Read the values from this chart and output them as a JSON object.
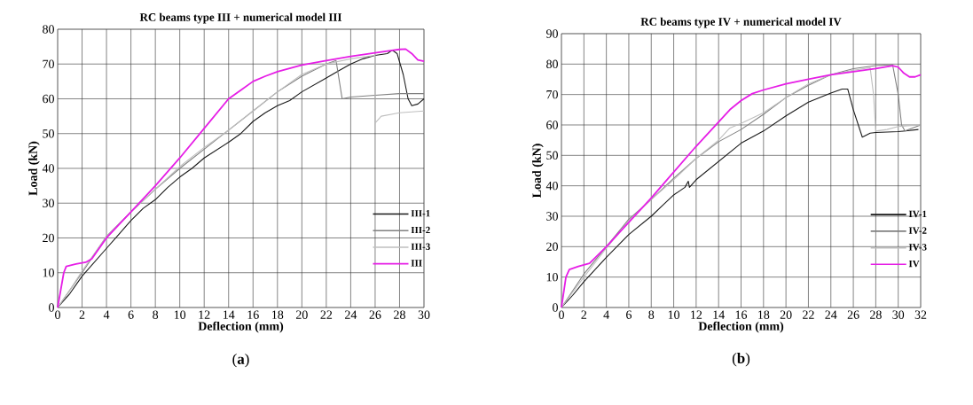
{
  "chart_data": [
    {
      "type": "line",
      "title": "RC beams type III + numerical model III",
      "xlabel": "Deflection (mm)",
      "ylabel": "Load (kN)",
      "annotations": [
        "(**a**)"
      ],
      "xlim": [
        0,
        30
      ],
      "ylim": [
        0,
        80
      ],
      "xticks": [
        0,
        2,
        4,
        6,
        8,
        10,
        12,
        14,
        16,
        18,
        20,
        22,
        24,
        26,
        28,
        30
      ],
      "yticks": [
        0,
        10,
        20,
        30,
        40,
        50,
        60,
        70,
        80
      ],
      "grid": true,
      "legend": "right",
      "series": [
        {
          "name": "III-1",
          "color": "#1a1a1a",
          "x": [
            0,
            1,
            2,
            3,
            4,
            5,
            6,
            7,
            8,
            9,
            10,
            11,
            12,
            14,
            15,
            16,
            17,
            18,
            19,
            20,
            21,
            22,
            23,
            24,
            25,
            26,
            27,
            27.4,
            27.8,
            28.3,
            28.7,
            29,
            29.5,
            30
          ],
          "values": [
            0,
            4,
            9,
            13,
            17,
            21,
            25,
            28.5,
            31,
            34.5,
            37.5,
            40,
            43,
            47.5,
            50,
            53.5,
            56,
            58,
            59.5,
            62,
            64,
            66,
            68,
            70,
            71.5,
            72.5,
            73,
            74,
            73,
            67,
            60,
            58,
            58.5,
            60
          ]
        },
        {
          "name": "III-2",
          "color": "#808080",
          "x": [
            0,
            1,
            2,
            4,
            6,
            8,
            10,
            12,
            14,
            16,
            18,
            20,
            22,
            22.8,
            23.3,
            24,
            26,
            28,
            30
          ],
          "values": [
            0,
            5,
            10,
            20.5,
            27.5,
            34,
            40,
            45.5,
            51,
            56.5,
            62,
            66.5,
            70,
            71,
            60,
            60.5,
            61,
            61.5,
            61.5
          ]
        },
        {
          "name": "III-3",
          "color": "#bfbfbf",
          "x": [
            0,
            1,
            2,
            4,
            6,
            8,
            10,
            12,
            14,
            16,
            18,
            20,
            22,
            24,
            25,
            26,
            26,
            26.5,
            28,
            30
          ],
          "values": [
            0,
            5,
            10.5,
            20.5,
            27.5,
            34,
            40.5,
            46,
            51,
            56.5,
            62,
            67,
            70,
            71.5,
            72,
            72.5,
            53,
            55,
            56,
            56.5
          ]
        },
        {
          "name": "III",
          "color": "#e61ee6",
          "x": [
            0,
            0.5,
            0.7,
            1.5,
            2.3,
            2.8,
            4,
            6,
            8,
            10,
            12,
            14,
            15,
            16,
            17,
            18,
            20,
            22,
            24,
            26,
            27.5,
            28,
            28.5,
            29,
            29.5,
            30
          ],
          "values": [
            0,
            10,
            11.8,
            12.5,
            13,
            14,
            20,
            27.5,
            35,
            43,
            51.5,
            60,
            62.5,
            65,
            66.5,
            67.8,
            69.7,
            71,
            72.2,
            73.2,
            74,
            74.2,
            74.3,
            73,
            71.2,
            70.8
          ]
        }
      ]
    },
    {
      "type": "line",
      "title": "RC beams type IV + numerical model IV",
      "xlabel": "Deflection (mm)",
      "ylabel": "Load (kN)",
      "annotations": [
        "(**b**)"
      ],
      "xlim": [
        0,
        32
      ],
      "ylim": [
        0,
        90
      ],
      "xticks": [
        0,
        2,
        4,
        6,
        8,
        10,
        12,
        14,
        16,
        18,
        20,
        22,
        24,
        26,
        28,
        30,
        32
      ],
      "yticks": [
        0,
        10,
        20,
        30,
        40,
        50,
        60,
        70,
        80,
        90
      ],
      "grid": true,
      "legend": "right",
      "series": [
        {
          "name": "IV-1",
          "color": "#1a1a1a",
          "x": [
            0,
            1,
            2,
            4,
            6,
            7,
            8,
            9,
            10,
            11,
            11.3,
            11.4,
            12,
            14,
            16,
            18,
            20,
            22,
            24,
            25,
            25.5,
            26,
            26.8,
            27.5,
            28,
            30,
            31.8
          ],
          "values": [
            0,
            4,
            8.5,
            16.5,
            24,
            27,
            30,
            33.5,
            37,
            39.5,
            41.5,
            39.5,
            42,
            48,
            54,
            58,
            63,
            67.5,
            70.5,
            71.8,
            71.8,
            65,
            56,
            57.3,
            57.5,
            57.8,
            58.5
          ]
        },
        {
          "name": "IV-2",
          "color": "#808080",
          "x": [
            0,
            2,
            4,
            6,
            8,
            10,
            12,
            14,
            16,
            18,
            20,
            22,
            24,
            26,
            28,
            29.5,
            30,
            30.3,
            30.6,
            32
          ],
          "values": [
            0,
            11,
            20,
            29,
            35.5,
            42.5,
            49,
            54.5,
            58.5,
            63.5,
            69,
            73,
            76.5,
            78.5,
            79.5,
            79.8,
            70,
            60,
            58,
            60
          ]
        },
        {
          "name": "IV-3",
          "color": "#bfbfbf",
          "x": [
            0,
            2,
            4,
            6,
            8,
            10,
            12,
            14,
            15,
            16,
            18,
            20,
            22,
            24,
            26,
            27.5,
            27.8,
            28,
            29,
            30,
            32
          ],
          "values": [
            0,
            10,
            19.5,
            28.5,
            35.5,
            42,
            49,
            55,
            59,
            60.5,
            64,
            69,
            73.5,
            76.5,
            78,
            78.8,
            70,
            58,
            58.5,
            59.5,
            60
          ]
        },
        {
          "name": "IV",
          "color": "#e61ee6",
          "x": [
            0,
            0.4,
            0.7,
            1.5,
            2.5,
            4,
            6,
            8,
            10,
            12,
            14,
            15,
            16,
            17,
            18,
            20,
            22,
            24,
            26,
            28,
            29.5,
            30,
            30.5,
            31,
            31.5,
            32
          ],
          "values": [
            0,
            10,
            12.5,
            13.5,
            14.5,
            20,
            28,
            36,
            44.5,
            53,
            61,
            65,
            68,
            70.3,
            71.5,
            73.5,
            75,
            76.5,
            77.5,
            78.5,
            79.5,
            79,
            77,
            75.8,
            75.8,
            76.5
          ]
        }
      ]
    }
  ]
}
